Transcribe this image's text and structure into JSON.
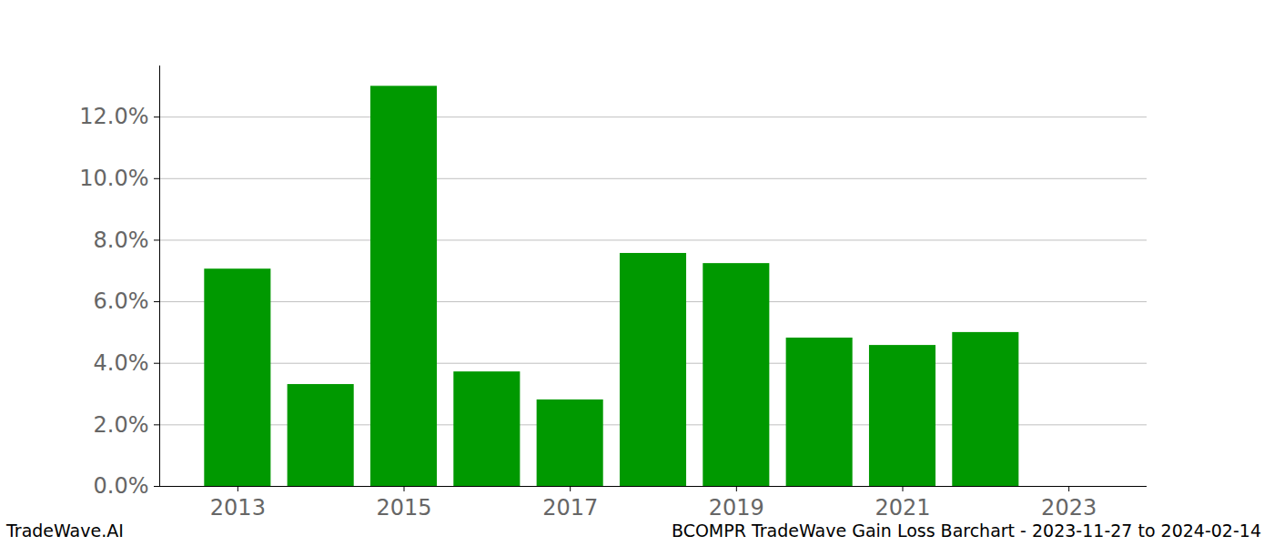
{
  "chart_data": {
    "type": "bar",
    "title": "BCOMPR TradeWave Gain Loss Barchart - 2023-11-27 to 2024-02-14",
    "caption": "TradeWave.AI",
    "x": [
      2013,
      2014,
      2015,
      2016,
      2017,
      2018,
      2019,
      2020,
      2021,
      2022,
      2023
    ],
    "values": [
      7.06,
      3.31,
      13.0,
      3.72,
      2.81,
      7.57,
      7.24,
      4.82,
      4.58,
      5.0,
      0
    ],
    "color": "#009900",
    "xlim": [
      2012.06,
      2023.94
    ],
    "xticks": [
      2013,
      2015,
      2017,
      2019,
      2021,
      2023
    ],
    "ylim": [
      0,
      13.66
    ],
    "yticks": [
      {
        "value": 0,
        "label": "0.0%"
      },
      {
        "value": 2,
        "label": "2.0%"
      },
      {
        "value": 4,
        "label": "4.0%"
      },
      {
        "value": 6,
        "label": "6.0%"
      },
      {
        "value": 8,
        "label": "8.0%"
      },
      {
        "value": 10,
        "label": "10.0%"
      },
      {
        "value": 12,
        "label": "12.0%"
      }
    ],
    "grid": true
  }
}
